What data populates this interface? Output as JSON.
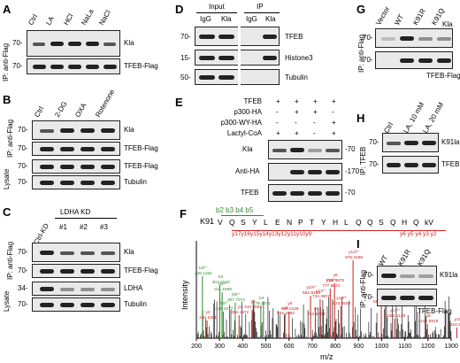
{
  "panels": [
    "A",
    "B",
    "C",
    "D",
    "E",
    "F",
    "G",
    "H",
    "I"
  ],
  "A": {
    "lanes": [
      "Ctrl",
      "LA",
      "HCl",
      "NaLa",
      "NaCl"
    ],
    "ip_label": "IP: anti-Flag",
    "rows": [
      {
        "mw": "70-",
        "label": "Kla"
      },
      {
        "mw": "70-",
        "label": "TFEB-Flag"
      }
    ]
  },
  "B": {
    "lanes": [
      "Ctrl",
      "2-DG",
      "OXA",
      "Rotenone"
    ],
    "ip_label": "IP: anti-Flag",
    "lysate_label": "Lysate",
    "rows": [
      {
        "mw": "70-",
        "label": "Kla"
      },
      {
        "mw": "70-",
        "label": "TFEB-Flag"
      },
      {
        "mw": "70-",
        "label": "TFEB-Flag"
      },
      {
        "mw": "70-",
        "label": "Tubulin"
      }
    ]
  },
  "C": {
    "group_label": "LDHA KD",
    "lanes": [
      "Ctrl-KD",
      "#1",
      "#2",
      "#3"
    ],
    "ip_label": "IP: anti-Flag",
    "lysate_label": "Lysate",
    "rows": [
      {
        "mw": "70-",
        "label": "Kla"
      },
      {
        "mw": "70-",
        "label": "TFEB-Flag"
      },
      {
        "mw": "34-",
        "label": "LDHA"
      },
      {
        "mw": "70-",
        "label": "Tubulin"
      }
    ]
  },
  "D": {
    "input_label": "Input",
    "ip_label": "IP",
    "lanes": [
      "IgG",
      "Kla",
      "IgG",
      "Kla"
    ],
    "rows": [
      {
        "mw": "70-",
        "label": "TFEB"
      },
      {
        "mw": "15-",
        "label": "Histone3"
      },
      {
        "mw": "50-",
        "label": "Tubulin"
      }
    ]
  },
  "E": {
    "conditions": [
      {
        "name": "TFEB",
        "signs": [
          "+",
          "+",
          "+",
          "+"
        ]
      },
      {
        "name": "p300-HA",
        "signs": [
          "-",
          "+",
          "+",
          "-"
        ]
      },
      {
        "name": "p300-WY-HA",
        "signs": [
          "-",
          "-",
          "-",
          "+"
        ]
      },
      {
        "name": "Lactyl-CoA",
        "signs": [
          "+",
          "+",
          "-",
          "+"
        ]
      }
    ],
    "rows": [
      {
        "mw": "-70",
        "label": "Kla"
      },
      {
        "mw": "-170",
        "label": "Anti-HA"
      },
      {
        "mw": "-70",
        "label": "TFEB"
      }
    ]
  },
  "F": {
    "peptide_prefix": "K91",
    "residues": [
      "V",
      "Q",
      "S",
      "Y",
      "L",
      "E",
      "N",
      "P",
      "T",
      "Y",
      "H",
      "L",
      "Q",
      "Q",
      "S",
      "Q",
      "H",
      "Q",
      "kV"
    ],
    "b_ions": "b2 b3 b4 b5",
    "y_ions_top": "y17y16y15y14y13y12y11y10y9",
    "y_ions_right": "y6 y5 y4 y3 y2",
    "xlabel": "m/z",
    "ylabel": "Intensity",
    "xticks": [
      "200",
      "300",
      "400",
      "500",
      "600",
      "700",
      "800",
      "900",
      "1000",
      "1100",
      "1200",
      "1300"
    ],
    "annotations": [
      {
        "ion": "b3²⁺",
        "mz": "226.1262",
        "color": "#2e8b2e"
      },
      {
        "ion": "b4²⁺",
        "mz": "311.1698",
        "color": "#2e8b2e"
      },
      {
        "ion": "b5²⁺",
        "mz": "367.7074",
        "color": "#2e8b2e"
      },
      {
        "ion": "b6²⁺",
        "mz": "316.1677",
        "color": "#2e8b2e"
      },
      {
        "ion": "b3",
        "mz": "301.2133",
        "color": "#2e8b2e"
      },
      {
        "ion": "b4",
        "mz": "478.2271",
        "color": "#2e8b2e"
      },
      {
        "ion": "y2",
        "mz": "246.1561",
        "color": "#cc2222"
      },
      {
        "ion": "y3",
        "mz": "384.1972",
        "color": "#cc2222"
      },
      {
        "ion": "y3",
        "mz": "440.7593",
        "color": "#cc2222"
      },
      {
        "ion": "y4",
        "mz": "582.2892",
        "color": "#cc2222"
      },
      {
        "ion": "y5",
        "mz": "600.0128",
        "color": "#cc2222"
      },
      {
        "ion": "y6",
        "mz": "713.6003",
        "color": "#cc2222"
      },
      {
        "ion": "y10²⁺",
        "mz": "692.8269",
        "color": "#cc2222"
      },
      {
        "ion": "y11²⁺",
        "mz": "734.3807",
        "color": "#cc2222"
      },
      {
        "ion": "y12²⁺",
        "mz": "777.8621",
        "color": "#cc2222"
      },
      {
        "ion": "y13²⁺",
        "mz": "823.5504",
        "color": "#cc2222"
      },
      {
        "ion": "y6",
        "mz": "796.3872",
        "color": "#cc2222"
      },
      {
        "ion": "y14²⁺",
        "mz": "876.3299",
        "color": "#cc2222"
      },
      {
        "ion": "y7",
        "mz": "998.4771",
        "color": "#cc2222"
      },
      {
        "ion": "y17²⁺",
        "mz": "1055.0129",
        "color": "#cc2222"
      },
      {
        "ion": "y8",
        "mz": "1197.5819",
        "color": "#cc2222"
      },
      {
        "ion": "y10",
        "mz": "1324.6536",
        "color": "#cc2222"
      }
    ]
  },
  "G": {
    "lanes": [
      "Vector",
      "WT",
      "K91R",
      "K91Q"
    ],
    "ip_label": "IP: anti-Flag",
    "rows": [
      {
        "mw": "70-",
        "label": "Kla"
      },
      {
        "mw": "70-",
        "label": "TFEB-Flag"
      }
    ]
  },
  "H": {
    "lanes": [
      "Ctrl",
      "LA, 10 mM",
      "LA, 20 mM"
    ],
    "ip_label": "IP: TFEB",
    "rows": [
      {
        "mw": "70-",
        "label": "K91la"
      },
      {
        "mw": "70-",
        "label": "TFEB"
      }
    ]
  },
  "I": {
    "lanes": [
      "WT",
      "K91R",
      "K91Q"
    ],
    "ip_label": "IP: anti-Flag",
    "rows": [
      {
        "mw": "70-",
        "label": "K91la"
      },
      {
        "mw": "70-",
        "label": "TFEB-Flag"
      }
    ]
  }
}
